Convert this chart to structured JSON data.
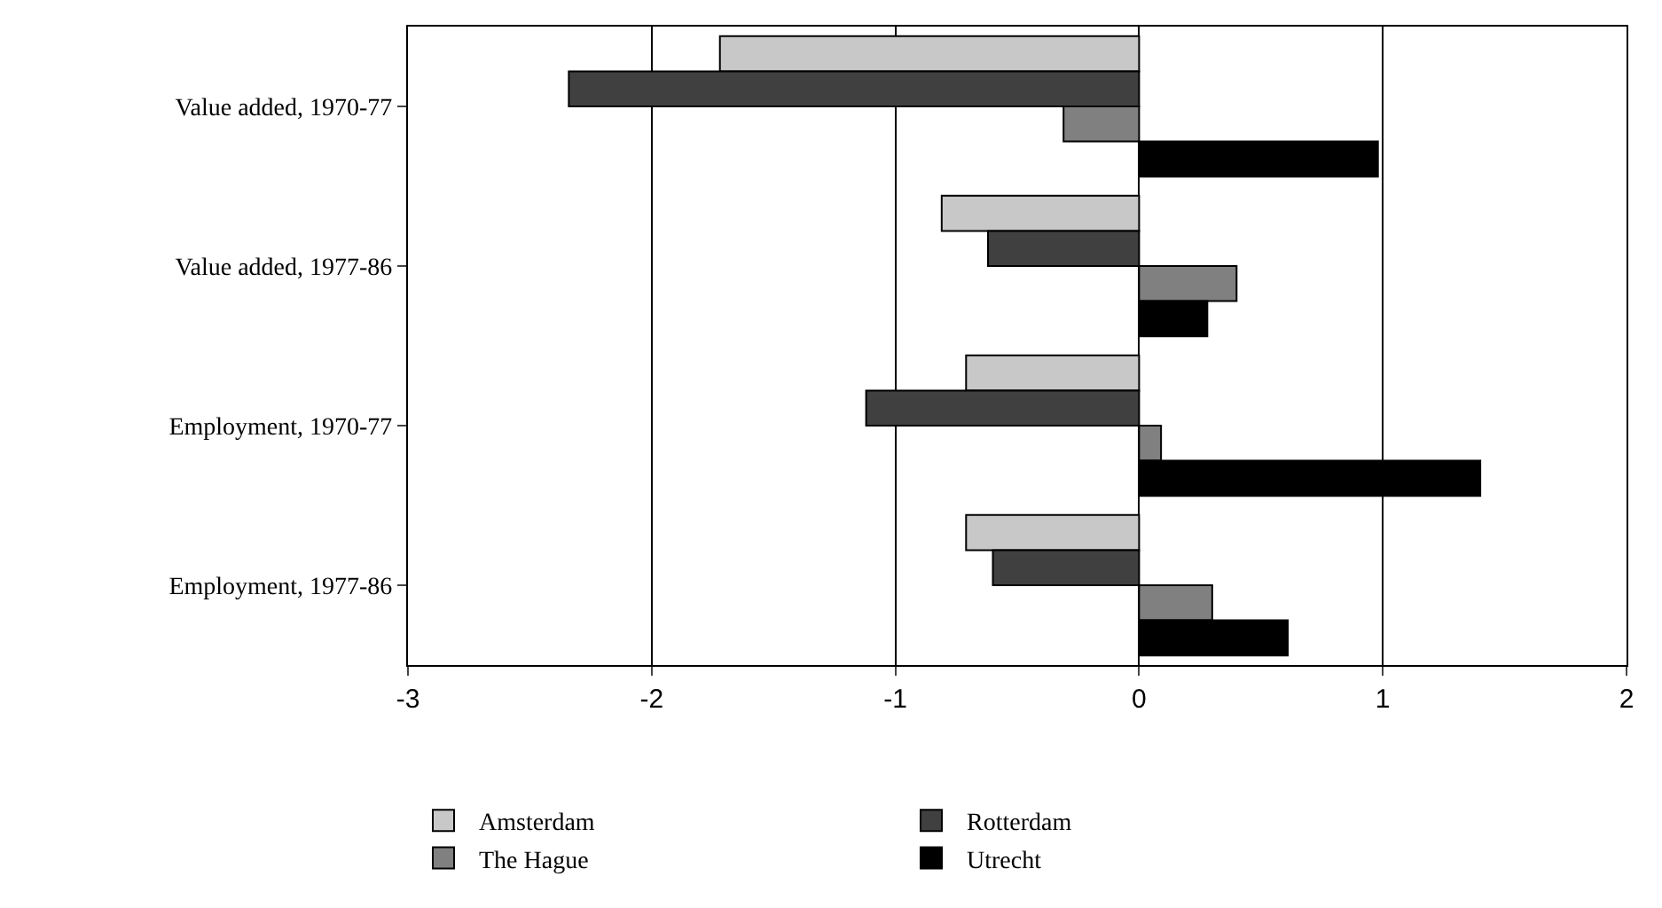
{
  "chart_data": {
    "type": "bar",
    "orientation": "horizontal",
    "categories": [
      "Value added, 1970-77",
      "Value added, 1977-86",
      "Employment, 1970-77",
      "Employment, 1977-86"
    ],
    "series": [
      {
        "name": "Amsterdam",
        "color": "#c8c8c8",
        "values": [
          -1.72,
          -0.81,
          -0.71,
          -0.71
        ]
      },
      {
        "name": "Rotterdam",
        "color": "#404040",
        "values": [
          -2.34,
          -0.62,
          -1.12,
          -0.6
        ]
      },
      {
        "name": "The Hague",
        "color": "#808080",
        "values": [
          -0.31,
          0.4,
          0.09,
          0.3
        ]
      },
      {
        "name": "Utrecht",
        "color": "#000000",
        "values": [
          0.98,
          0.28,
          1.4,
          0.61
        ]
      }
    ],
    "xlim": [
      -3,
      2
    ],
    "xticks": [
      -3,
      -2,
      -1,
      0,
      1,
      2
    ],
    "grid": "x",
    "legend": "bottom"
  }
}
